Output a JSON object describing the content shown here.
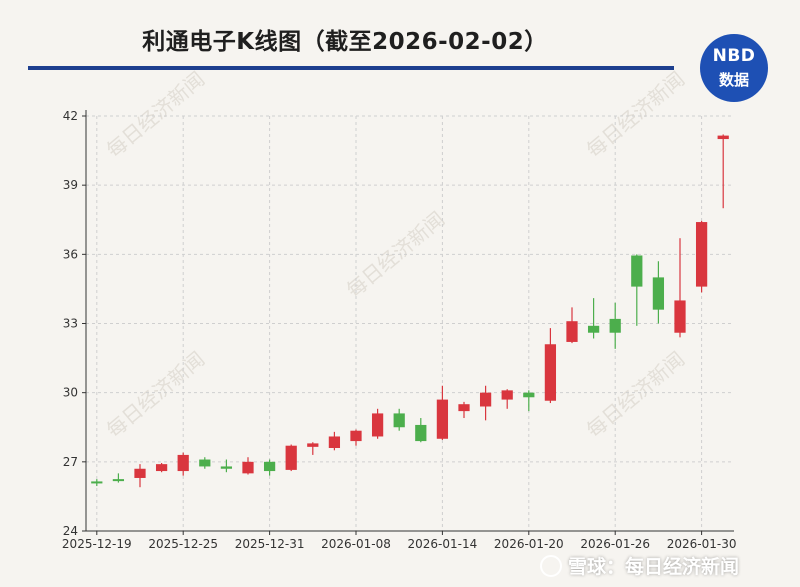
{
  "header": {
    "title": "利通电子K线图（截至2026-02-02）",
    "logo_line1": "NBD",
    "logo_line2": "数据"
  },
  "watermark_text": "每日经济新闻",
  "footer": {
    "source": "雪球：每日经济新闻"
  },
  "colors": {
    "up": "#d9363e",
    "down": "#4cae4c",
    "title_rule": "#1d3f8f",
    "logo_bg": "#1e50b4",
    "grid": "#cfcfcf",
    "axis": "#333333"
  },
  "chart_data": {
    "type": "candlestick",
    "title": "利通电子K线图（截至2026-02-02）",
    "ylim": [
      24,
      42
    ],
    "yticks": [
      24,
      27,
      30,
      33,
      36,
      39,
      42
    ],
    "xtick_labels": [
      "2025-12-19",
      "2025-12-25",
      "2025-12-31",
      "2026-01-08",
      "2026-01-14",
      "2026-01-20",
      "2026-01-26",
      "2026-01-30"
    ],
    "xtick_indices": [
      0,
      4,
      8,
      12,
      16,
      20,
      24,
      28
    ],
    "grid": true,
    "candles": [
      {
        "date": "2025-12-19",
        "open": 26.15,
        "high": 26.25,
        "low": 25.95,
        "close": 26.1
      },
      {
        "date": "2025-12-22",
        "open": 26.25,
        "high": 26.5,
        "low": 26.1,
        "close": 26.2
      },
      {
        "date": "2025-12-23",
        "open": 26.3,
        "high": 26.9,
        "low": 25.9,
        "close": 26.7
      },
      {
        "date": "2025-12-24",
        "open": 26.6,
        "high": 26.95,
        "low": 26.55,
        "close": 26.9
      },
      {
        "date": "2025-12-25",
        "open": 26.6,
        "high": 27.4,
        "low": 26.4,
        "close": 27.3
      },
      {
        "date": "2025-12-26",
        "open": 27.1,
        "high": 27.2,
        "low": 26.7,
        "close": 26.8
      },
      {
        "date": "2025-12-29",
        "open": 26.8,
        "high": 27.1,
        "low": 26.55,
        "close": 26.7
      },
      {
        "date": "2025-12-30",
        "open": 26.5,
        "high": 27.2,
        "low": 26.45,
        "close": 27.0
      },
      {
        "date": "2025-12-31",
        "open": 27.0,
        "high": 27.1,
        "low": 26.4,
        "close": 26.6
      },
      {
        "date": "2026-01-05",
        "open": 26.65,
        "high": 27.75,
        "low": 26.6,
        "close": 27.7
      },
      {
        "date": "2026-01-06",
        "open": 27.65,
        "high": 27.85,
        "low": 27.3,
        "close": 27.8
      },
      {
        "date": "2026-01-07",
        "open": 27.6,
        "high": 28.3,
        "low": 27.5,
        "close": 28.1
      },
      {
        "date": "2026-01-08",
        "open": 27.9,
        "high": 28.4,
        "low": 27.7,
        "close": 28.35
      },
      {
        "date": "2026-01-09",
        "open": 28.1,
        "high": 29.3,
        "low": 28.0,
        "close": 29.1
      },
      {
        "date": "2026-01-12",
        "open": 29.1,
        "high": 29.3,
        "low": 28.35,
        "close": 28.5
      },
      {
        "date": "2026-01-13",
        "open": 28.6,
        "high": 28.9,
        "low": 27.85,
        "close": 27.9
      },
      {
        "date": "2026-01-14",
        "open": 28.0,
        "high": 30.3,
        "low": 27.95,
        "close": 29.7
      },
      {
        "date": "2026-01-15",
        "open": 29.2,
        "high": 29.6,
        "low": 28.9,
        "close": 29.5
      },
      {
        "date": "2026-01-16",
        "open": 29.4,
        "high": 30.3,
        "low": 28.8,
        "close": 30.0
      },
      {
        "date": "2026-01-19",
        "open": 29.7,
        "high": 30.15,
        "low": 29.3,
        "close": 30.1
      },
      {
        "date": "2026-01-20",
        "open": 30.0,
        "high": 30.1,
        "low": 29.2,
        "close": 29.8
      },
      {
        "date": "2026-01-21",
        "open": 29.65,
        "high": 32.8,
        "low": 29.55,
        "close": 32.1
      },
      {
        "date": "2026-01-22",
        "open": 32.2,
        "high": 33.7,
        "low": 32.15,
        "close": 33.1
      },
      {
        "date": "2026-01-23",
        "open": 32.9,
        "high": 34.1,
        "low": 32.35,
        "close": 32.6
      },
      {
        "date": "2026-01-26",
        "open": 33.2,
        "high": 33.9,
        "low": 31.9,
        "close": 32.6
      },
      {
        "date": "2026-01-27",
        "open": 35.95,
        "high": 36.0,
        "low": 32.9,
        "close": 34.6
      },
      {
        "date": "2026-01-28",
        "open": 35.0,
        "high": 35.7,
        "low": 33.0,
        "close": 33.6
      },
      {
        "date": "2026-01-29",
        "open": 32.6,
        "high": 36.7,
        "low": 32.4,
        "close": 34.0
      },
      {
        "date": "2026-01-30",
        "open": 34.6,
        "high": 37.45,
        "low": 34.35,
        "close": 37.4
      },
      {
        "date": "2026-02-02",
        "open": 41.0,
        "high": 41.2,
        "low": 38.0,
        "close": 41.15
      }
    ]
  }
}
